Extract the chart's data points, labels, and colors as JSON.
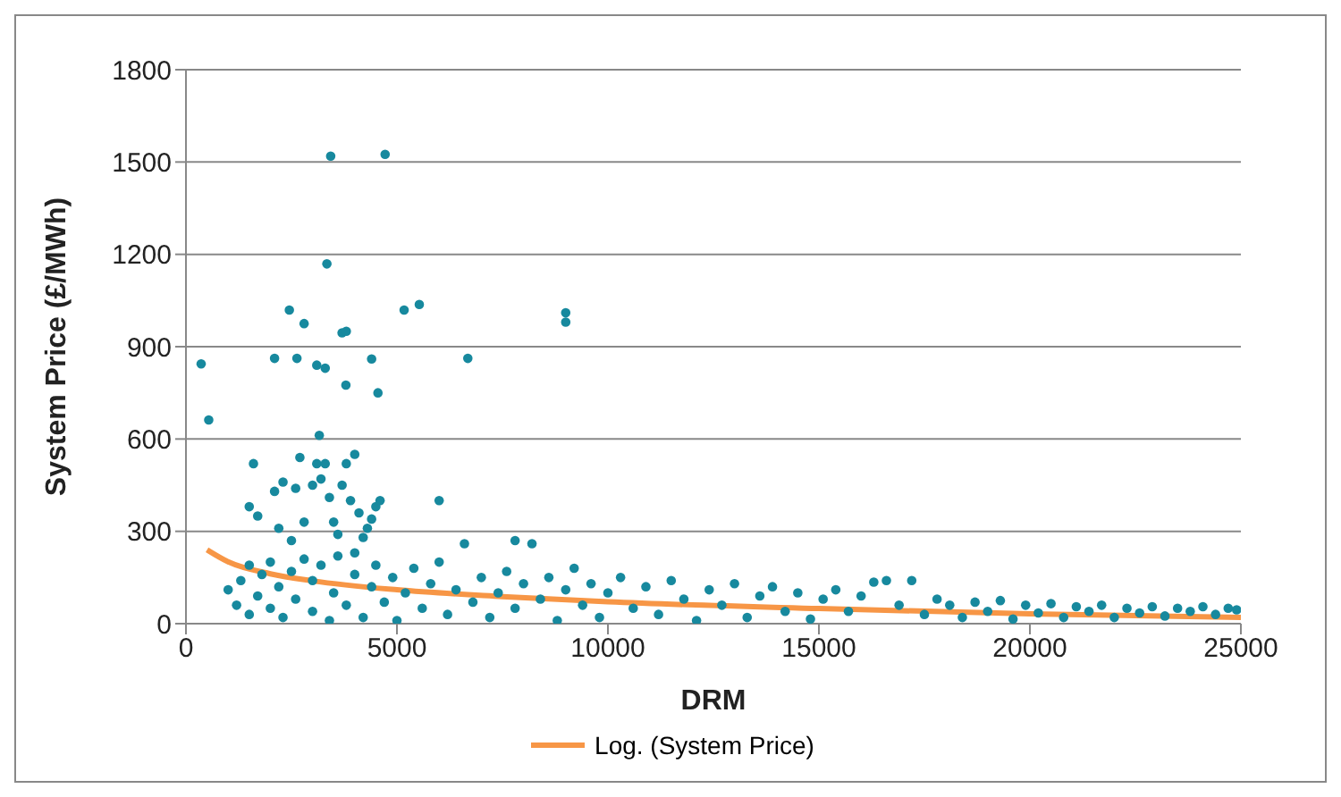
{
  "chart_data": {
    "type": "scatter",
    "xlabel": "DRM",
    "ylabel": "System Price (£/MWh)",
    "xlim": [
      0,
      25000
    ],
    "xticks": [
      0,
      5000,
      10000,
      15000,
      20000,
      25000
    ],
    "ylim": [
      0,
      1800
    ],
    "yticks": [
      0,
      300,
      600,
      900,
      1200,
      1500,
      1800
    ],
    "grid": "y",
    "legend": "bottom",
    "marker": "circle",
    "series": [
      {
        "color": "#17899e",
        "x": [
          360,
          540,
          3430,
          4720,
          3340,
          2450,
          2800,
          3700,
          3800,
          5170,
          5530,
          2100,
          2630,
          3100,
          3300,
          4400,
          6680,
          9000,
          9000,
          3790,
          4550,
          3160,
          1600,
          1500,
          1700,
          2100,
          2300,
          2200,
          2600,
          2700,
          2800,
          3000,
          3100,
          3200,
          3300,
          3400,
          3500,
          3600,
          3700,
          3800,
          3900,
          4000,
          4100,
          4200,
          4300,
          4400,
          4500,
          4600,
          6000,
          7800,
          2500,
          1000,
          1200,
          1300,
          1500,
          1500,
          1700,
          1800,
          2000,
          2000,
          2200,
          2300,
          2500,
          2600,
          2800,
          3000,
          3000,
          3200,
          3400,
          3500,
          3600,
          3800,
          4000,
          4000,
          4200,
          4400,
          4500,
          4700,
          4900,
          5000,
          5200,
          5400,
          5600,
          5800,
          6000,
          6200,
          6400,
          6600,
          6800,
          7000,
          7200,
          7400,
          7600,
          7800,
          8000,
          8200,
          8400,
          8600,
          8800,
          9000,
          9200,
          9400,
          9600,
          9800,
          10000,
          10300,
          10600,
          10900,
          11200,
          11500,
          11800,
          12100,
          12400,
          12700,
          13000,
          13300,
          13600,
          13900,
          14200,
          14500,
          14800,
          15100,
          15400,
          15700,
          16000,
          16300,
          16600,
          16900,
          17200,
          17500,
          17800,
          18100,
          18400,
          18700,
          19000,
          19300,
          19600,
          19900,
          20200,
          20500,
          20800,
          21100,
          21400,
          21700,
          22000,
          22300,
          22600,
          22900,
          23200,
          23500,
          23800,
          24100,
          24400,
          24700,
          24900
        ],
        "values": [
          844,
          662,
          1519,
          1525,
          1169,
          1019,
          975,
          945,
          950,
          1019,
          1037,
          862,
          862,
          840,
          830,
          860,
          862,
          1010,
          980,
          775,
          750,
          612,
          520,
          380,
          350,
          430,
          460,
          310,
          440,
          540,
          330,
          450,
          520,
          470,
          520,
          410,
          330,
          290,
          450,
          520,
          400,
          550,
          360,
          280,
          310,
          340,
          380,
          400,
          400,
          270,
          270,
          110,
          60,
          140,
          190,
          30,
          90,
          160,
          50,
          200,
          120,
          20,
          170,
          80,
          210,
          40,
          140,
          190,
          10,
          100,
          220,
          60,
          160,
          230,
          20,
          120,
          190,
          70,
          150,
          10,
          100,
          180,
          50,
          130,
          200,
          30,
          110,
          260,
          70,
          150,
          20,
          100,
          170,
          50,
          130,
          260,
          80,
          150,
          10,
          110,
          180,
          60,
          130,
          20,
          100,
          150,
          50,
          120,
          30,
          140,
          80,
          10,
          110,
          60,
          130,
          20,
          90,
          120,
          40,
          100,
          15,
          80,
          110,
          40,
          90,
          135,
          140,
          60,
          140,
          30,
          80,
          60,
          20,
          70,
          40,
          75,
          15,
          60,
          35,
          65,
          20,
          55,
          40,
          60,
          20,
          50,
          35,
          55,
          25,
          50,
          40,
          55,
          30,
          50,
          45
        ]
      },
      {
        "type": "line",
        "name": "Log. (System Price)",
        "color": "#f79646",
        "marker": "none",
        "line_style": "solid",
        "x": [
          500,
          1000,
          2000,
          3000,
          5000,
          7500,
          10000,
          15000,
          20000,
          25000
        ],
        "values": [
          240,
          201,
          162,
          139,
          110,
          88,
          71,
          49,
          32,
          20
        ]
      }
    ]
  }
}
